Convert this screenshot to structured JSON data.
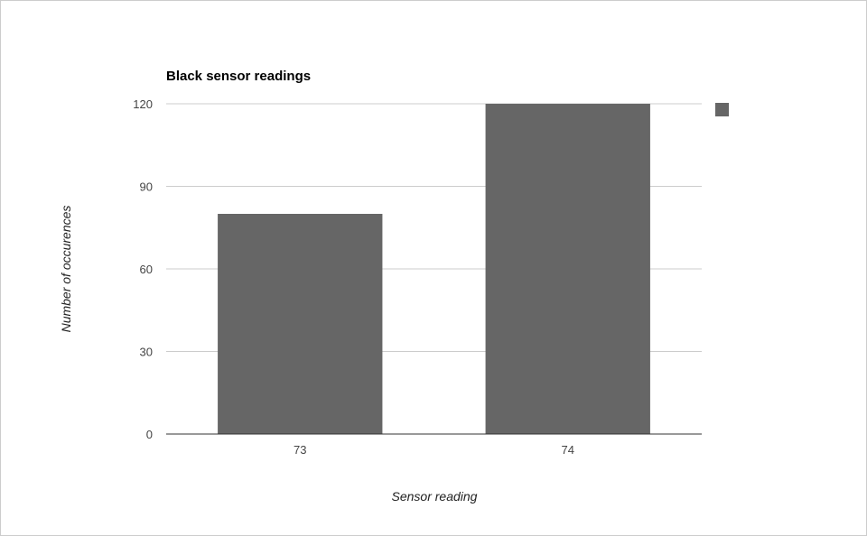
{
  "chart_data": {
    "type": "bar",
    "title": "Black sensor readings",
    "xlabel": "Sensor reading",
    "ylabel": "Number of occurences",
    "categories": [
      "73",
      "74"
    ],
    "series": [
      {
        "values": [
          80,
          120
        ]
      }
    ],
    "ylim": [
      0,
      120
    ],
    "yticks": [
      0,
      30,
      60,
      90,
      120
    ],
    "grid": true,
    "legend": "right",
    "bar_color": "#666666"
  }
}
